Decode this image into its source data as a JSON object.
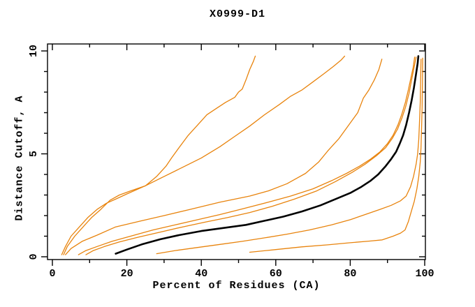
{
  "title": "X0999-D1",
  "chart_data": {
    "type": "line",
    "title": "X0999-D1",
    "xlabel": "Percent of Residues (CA)",
    "ylabel": "Distance Cutoff, A",
    "xlim": [
      0,
      100
    ],
    "ylim": [
      0,
      10
    ],
    "x_major_ticks": [
      0,
      20,
      40,
      60,
      80,
      100
    ],
    "x_minor_step": 10,
    "y_major_ticks": [
      0,
      5,
      10
    ],
    "y_minor_step": 1,
    "grid": false,
    "legend": "none",
    "frame": "box with outward ticks on left/bottom, inward on top/right",
    "colors": {
      "model": "#e8830c",
      "reference": "#000000"
    },
    "series": [
      {
        "name": "orange-model-1",
        "color": "#e8830c",
        "width": 1.3,
        "points": [
          [
            3,
            0.1
          ],
          [
            4,
            0.5
          ],
          [
            6,
            1.0
          ],
          [
            8,
            1.4
          ],
          [
            10.5,
            1.9
          ],
          [
            13,
            2.3
          ],
          [
            15.5,
            2.75
          ],
          [
            18,
            3.0
          ],
          [
            21,
            3.2
          ],
          [
            25,
            3.45
          ],
          [
            28,
            3.9
          ],
          [
            30.5,
            4.4
          ],
          [
            32,
            4.8
          ],
          [
            34,
            5.3
          ],
          [
            36.5,
            5.9
          ],
          [
            39,
            6.4
          ],
          [
            41.5,
            6.9
          ],
          [
            44,
            7.2
          ],
          [
            46.5,
            7.5
          ],
          [
            49,
            7.75
          ],
          [
            50,
            8.0
          ],
          [
            51,
            8.15
          ],
          [
            52,
            8.6
          ],
          [
            53,
            9.1
          ],
          [
            54,
            9.5
          ],
          [
            54.5,
            9.75
          ]
        ]
      },
      {
        "name": "orange-model-2",
        "color": "#e8830c",
        "width": 1.3,
        "points": [
          [
            2.5,
            0.1
          ],
          [
            3.5,
            0.5
          ],
          [
            5,
            1.0
          ],
          [
            7,
            1.4
          ],
          [
            9.5,
            1.9
          ],
          [
            12,
            2.3
          ],
          [
            14.5,
            2.6
          ],
          [
            17,
            2.8
          ],
          [
            20,
            3.05
          ],
          [
            25,
            3.45
          ],
          [
            30,
            3.9
          ],
          [
            35,
            4.35
          ],
          [
            40,
            4.8
          ],
          [
            45,
            5.35
          ],
          [
            49,
            5.85
          ],
          [
            53,
            6.35
          ],
          [
            57,
            6.9
          ],
          [
            61,
            7.4
          ],
          [
            64,
            7.8
          ],
          [
            67,
            8.1
          ],
          [
            70,
            8.5
          ],
          [
            73,
            8.9
          ],
          [
            75.5,
            9.25
          ],
          [
            77.5,
            9.55
          ],
          [
            78.5,
            9.75
          ]
        ]
      },
      {
        "name": "orange-model-3",
        "color": "#e8830c",
        "width": 1.3,
        "points": [
          [
            3.5,
            0.1
          ],
          [
            5,
            0.4
          ],
          [
            8,
            0.75
          ],
          [
            12,
            1.05
          ],
          [
            17,
            1.45
          ],
          [
            24,
            1.75
          ],
          [
            30,
            2.0
          ],
          [
            37,
            2.3
          ],
          [
            45,
            2.65
          ],
          [
            53,
            2.95
          ],
          [
            58,
            3.2
          ],
          [
            63,
            3.55
          ],
          [
            68,
            4.05
          ],
          [
            71.5,
            4.6
          ],
          [
            74,
            5.15
          ],
          [
            77,
            5.75
          ],
          [
            80,
            6.5
          ],
          [
            82,
            7.0
          ],
          [
            83.5,
            7.7
          ],
          [
            85,
            8.1
          ],
          [
            86.5,
            8.6
          ],
          [
            87.7,
            9.1
          ],
          [
            88.5,
            9.6
          ]
        ]
      },
      {
        "name": "orange-model-4",
        "color": "#e8830c",
        "width": 1.3,
        "points": [
          [
            7,
            0.1
          ],
          [
            9,
            0.3
          ],
          [
            12,
            0.5
          ],
          [
            16,
            0.75
          ],
          [
            21,
            1.0
          ],
          [
            27,
            1.3
          ],
          [
            33,
            1.55
          ],
          [
            39,
            1.8
          ],
          [
            45,
            2.05
          ],
          [
            51.5,
            2.35
          ],
          [
            58,
            2.65
          ],
          [
            64,
            2.95
          ],
          [
            70,
            3.3
          ],
          [
            75,
            3.7
          ],
          [
            79,
            4.05
          ],
          [
            82.5,
            4.4
          ],
          [
            85.5,
            4.75
          ],
          [
            88,
            5.1
          ],
          [
            90,
            5.5
          ],
          [
            91.5,
            5.9
          ],
          [
            92.8,
            6.4
          ],
          [
            93.8,
            6.9
          ],
          [
            94.8,
            7.5
          ],
          [
            95.6,
            8.1
          ],
          [
            96.3,
            8.7
          ],
          [
            96.9,
            9.2
          ],
          [
            97.3,
            9.7
          ]
        ]
      },
      {
        "name": "orange-model-5",
        "color": "#e8830c",
        "width": 1.3,
        "points": [
          [
            9,
            0.1
          ],
          [
            11,
            0.3
          ],
          [
            14,
            0.5
          ],
          [
            18,
            0.72
          ],
          [
            23,
            0.95
          ],
          [
            29,
            1.2
          ],
          [
            35,
            1.45
          ],
          [
            41,
            1.68
          ],
          [
            47,
            1.9
          ],
          [
            53,
            2.15
          ],
          [
            59,
            2.45
          ],
          [
            65,
            2.8
          ],
          [
            71,
            3.2
          ],
          [
            76,
            3.65
          ],
          [
            80.5,
            4.1
          ],
          [
            84,
            4.5
          ],
          [
            87,
            4.9
          ],
          [
            89.5,
            5.3
          ],
          [
            91.3,
            5.75
          ],
          [
            92.7,
            6.2
          ],
          [
            93.9,
            6.75
          ],
          [
            94.9,
            7.3
          ],
          [
            95.8,
            7.95
          ],
          [
            96.5,
            8.6
          ],
          [
            97.1,
            9.15
          ],
          [
            97.7,
            9.7
          ]
        ]
      },
      {
        "name": "black-reference",
        "color": "#000000",
        "width": 2.6,
        "points": [
          [
            17,
            0.15
          ],
          [
            20,
            0.35
          ],
          [
            24,
            0.6
          ],
          [
            29,
            0.85
          ],
          [
            34,
            1.05
          ],
          [
            40,
            1.25
          ],
          [
            46,
            1.4
          ],
          [
            52,
            1.55
          ],
          [
            57,
            1.75
          ],
          [
            62,
            1.95
          ],
          [
            67,
            2.2
          ],
          [
            72,
            2.5
          ],
          [
            76,
            2.8
          ],
          [
            80,
            3.1
          ],
          [
            83,
            3.4
          ],
          [
            85.5,
            3.7
          ],
          [
            87.5,
            4.0
          ],
          [
            89.5,
            4.4
          ],
          [
            91,
            4.75
          ],
          [
            92.3,
            5.1
          ],
          [
            93.3,
            5.5
          ],
          [
            94.2,
            5.9
          ],
          [
            95,
            6.4
          ],
          [
            95.8,
            7.0
          ],
          [
            96.5,
            7.6
          ],
          [
            97.1,
            8.2
          ],
          [
            97.7,
            8.9
          ],
          [
            98.1,
            9.4
          ],
          [
            98.3,
            9.75
          ]
        ]
      },
      {
        "name": "orange-model-6",
        "color": "#e8830c",
        "width": 1.3,
        "points": [
          [
            28,
            0.15
          ],
          [
            33,
            0.3
          ],
          [
            39,
            0.45
          ],
          [
            45,
            0.6
          ],
          [
            51,
            0.75
          ],
          [
            57,
            0.92
          ],
          [
            63,
            1.1
          ],
          [
            69,
            1.3
          ],
          [
            75,
            1.55
          ],
          [
            80,
            1.8
          ],
          [
            84,
            2.05
          ],
          [
            88,
            2.3
          ],
          [
            91,
            2.5
          ],
          [
            93.5,
            2.72
          ],
          [
            95,
            2.95
          ],
          [
            96.2,
            3.4
          ],
          [
            97,
            3.9
          ],
          [
            97.7,
            4.5
          ],
          [
            98.1,
            5.0
          ],
          [
            98.4,
            5.7
          ],
          [
            98.6,
            6.5
          ],
          [
            98.8,
            7.5
          ],
          [
            98.9,
            8.5
          ],
          [
            99.0,
            9.6
          ]
        ]
      },
      {
        "name": "orange-model-7",
        "color": "#e8830c",
        "width": 1.3,
        "points": [
          [
            53,
            0.22
          ],
          [
            60,
            0.35
          ],
          [
            67,
            0.48
          ],
          [
            74,
            0.58
          ],
          [
            80,
            0.68
          ],
          [
            85,
            0.76
          ],
          [
            88.6,
            0.82
          ],
          [
            91.5,
            1.0
          ],
          [
            93.5,
            1.15
          ],
          [
            94.7,
            1.3
          ],
          [
            95.6,
            1.7
          ],
          [
            96.4,
            2.2
          ],
          [
            97.2,
            2.7
          ],
          [
            97.9,
            3.3
          ],
          [
            98.4,
            3.9
          ],
          [
            98.8,
            4.6
          ],
          [
            99.0,
            5.3
          ],
          [
            99.15,
            6.2
          ],
          [
            99.3,
            7.3
          ],
          [
            99.4,
            8.5
          ],
          [
            99.45,
            9.65
          ]
        ]
      }
    ]
  }
}
